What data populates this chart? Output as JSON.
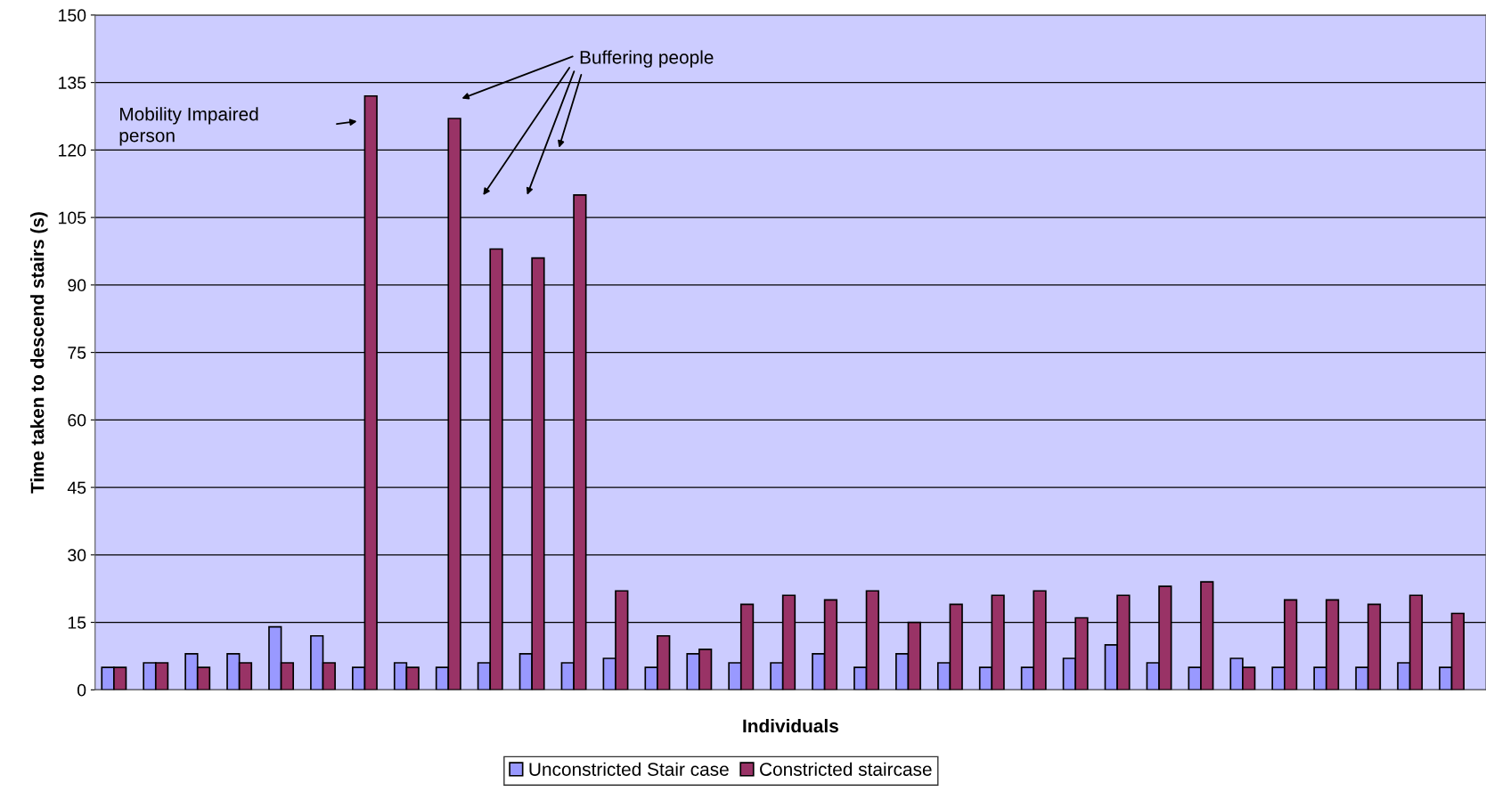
{
  "chart_data": {
    "type": "bar",
    "xlabel": "Individuals",
    "ylabel": "Time taken to descend stairs (s)",
    "categories": [
      null,
      null,
      null,
      null,
      null,
      null,
      null,
      null,
      null,
      null,
      null,
      null,
      null,
      null,
      null,
      null,
      null,
      null,
      null,
      null,
      null,
      null,
      null,
      null,
      null,
      null,
      null,
      null,
      null,
      null,
      null,
      null,
      null
    ],
    "series": [
      {
        "name": "Unconstricted Stair case",
        "color": "#9999ff",
        "values": [
          5,
          6,
          8,
          8,
          14,
          12,
          5,
          6,
          5,
          6,
          8,
          6,
          7,
          5,
          8,
          6,
          6,
          8,
          5,
          8,
          6,
          5,
          5,
          7,
          10,
          6,
          5,
          7,
          5,
          5,
          5,
          6,
          5
        ]
      },
      {
        "name": "Constricted staircase",
        "color": "#993366",
        "values": [
          5,
          6,
          5,
          6,
          6,
          6,
          132,
          5,
          127,
          98,
          96,
          110,
          22,
          12,
          9,
          19,
          21,
          20,
          22,
          15,
          19,
          21,
          22,
          16,
          21,
          23,
          24,
          5,
          20,
          20,
          19,
          21,
          17
        ]
      }
    ],
    "ylim": [
      0,
      150
    ],
    "yticks": [
      0,
      15,
      30,
      45,
      60,
      75,
      90,
      105,
      120,
      135,
      150
    ],
    "grid": "y",
    "legend": "bottom",
    "annotations": [
      "Mobility Impaired\nperson",
      "Buffering people"
    ]
  }
}
